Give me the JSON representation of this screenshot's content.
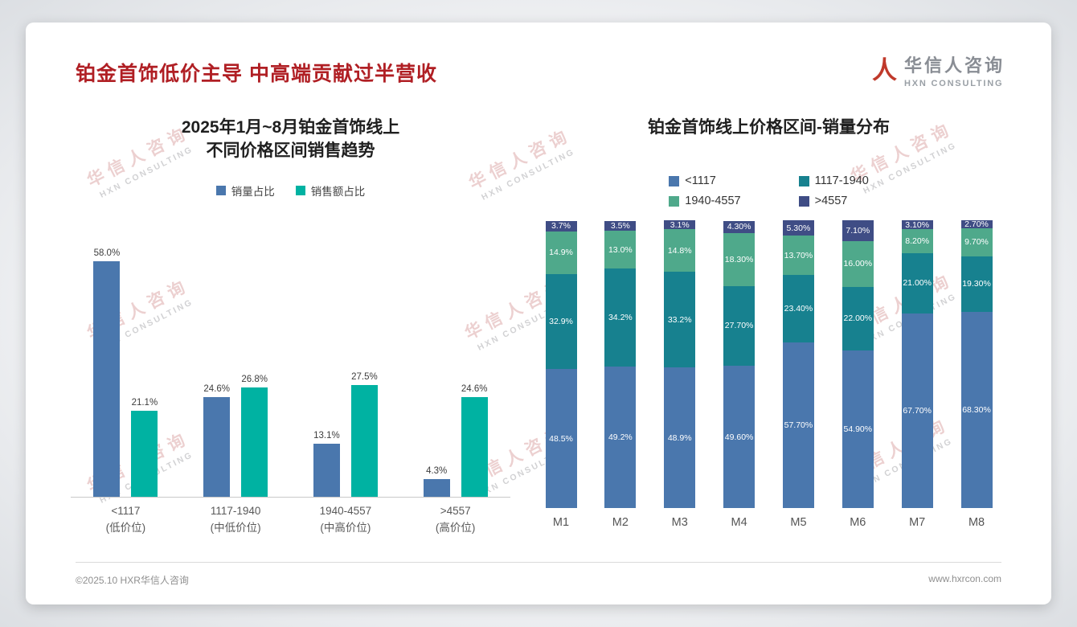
{
  "page": {
    "title": "铂金首饰低价主导 中高端贡献过半营收",
    "logo": {
      "name": "华信人咨询",
      "tagline": "HXN CONSULTING"
    },
    "watermark": {
      "line1": "华信人咨询",
      "line2": "HXN CONSULTING"
    },
    "footer": {
      "copyright": "©2025.10 HXR华信人咨询",
      "website": "www.hxrcon.com"
    }
  },
  "colors": {
    "title_red": "#b01f24",
    "logo_red": "#c0392b",
    "volume_blue": "#4a77ad",
    "revenue_teal": "#00b2a2",
    "stack_blue": "#4a77ad",
    "stack_teal": "#17818f",
    "stack_green": "#4fa98b",
    "stack_navy": "#3f4d85"
  },
  "chart_data": [
    {
      "type": "bar",
      "subtype": "grouped",
      "title": "2025年1月~8月铂金首饰线上\n不同价格区间销售趋势",
      "categories": [
        "<1117\n(低价位)",
        "1117-1940\n(中低价位)",
        "1940-4557\n(中高价位)",
        ">4557\n(高价位)"
      ],
      "series": [
        {
          "name": "销量占比",
          "color": "#4a77ad",
          "values": [
            58.0,
            24.6,
            13.1,
            4.3
          ],
          "labels": [
            "58.0%",
            "24.6%",
            "13.1%",
            "4.3%"
          ]
        },
        {
          "name": "销售额占比",
          "color": "#00b2a2",
          "values": [
            21.1,
            26.8,
            27.5,
            24.6
          ],
          "labels": [
            "21.1%",
            "26.8%",
            "27.5%",
            "24.6%"
          ]
        }
      ],
      "xlabel": "",
      "ylabel": "",
      "ylim": [
        0,
        65
      ],
      "grid": false,
      "legend_position": "top",
      "value_suffix": "%"
    },
    {
      "type": "bar",
      "subtype": "stacked",
      "title": "铂金首饰线上价格区间-销量分布",
      "categories": [
        "M1",
        "M2",
        "M3",
        "M4",
        "M5",
        "M6",
        "M7",
        "M8"
      ],
      "series": [
        {
          "name": "<1117",
          "color": "#4a77ad",
          "values": [
            48.5,
            49.2,
            48.9,
            49.6,
            57.7,
            54.9,
            67.7,
            68.3
          ],
          "labels": [
            "48.5%",
            "49.2%",
            "48.9%",
            "49.60%",
            "57.70%",
            "54.90%",
            "67.70%",
            "68.30%"
          ]
        },
        {
          "name": "1117-1940",
          "color": "#17818f",
          "values": [
            32.9,
            34.2,
            33.2,
            27.7,
            23.4,
            22.0,
            21.0,
            19.3
          ],
          "labels": [
            "32.9%",
            "34.2%",
            "33.2%",
            "27.70%",
            "23.40%",
            "22.00%",
            "21.00%",
            "19.30%"
          ]
        },
        {
          "name": "1940-4557",
          "color": "#4fa98b",
          "values": [
            14.9,
            13.0,
            14.8,
            18.3,
            13.7,
            16.0,
            8.2,
            9.7
          ],
          "labels": [
            "14.9%",
            "13.0%",
            "14.8%",
            "18.30%",
            "13.70%",
            "16.00%",
            "8.20%",
            "9.70%"
          ]
        },
        {
          "name": ">4557",
          "color": "#3f4d85",
          "values": [
            3.7,
            3.5,
            3.1,
            4.3,
            5.3,
            7.1,
            3.1,
            2.7
          ],
          "labels": [
            "3.7%",
            "3.5%",
            "3.1%",
            "4.30%",
            "5.30%",
            "7.10%",
            "3.10%",
            "2.70%"
          ]
        }
      ],
      "xlabel": "",
      "ylabel": "",
      "ylim": [
        0,
        100
      ],
      "grid": false,
      "legend_position": "top",
      "value_suffix": "%"
    }
  ]
}
